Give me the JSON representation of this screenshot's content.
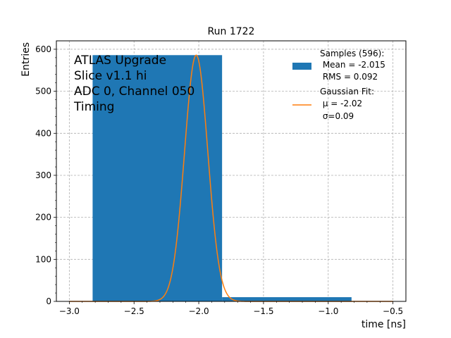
{
  "chart_data": {
    "type": "bar",
    "title": "Run 1722",
    "xlabel": "time [ns]",
    "ylabel": "Entries",
    "xlim": [
      -3.1,
      -0.4
    ],
    "ylim": [
      0,
      620
    ],
    "xticks": [
      -3.0,
      -2.5,
      -2.0,
      -1.5,
      -1.0,
      -0.5
    ],
    "xtick_labels": [
      "−3.0",
      "−2.5",
      "−2.0",
      "−1.5",
      "−1.0",
      "−0.5"
    ],
    "yticks": [
      0,
      100,
      200,
      300,
      400,
      500,
      600
    ],
    "ytick_labels": [
      "0",
      "100",
      "200",
      "300",
      "400",
      "500",
      "600"
    ],
    "grid": true,
    "histogram": {
      "name": "Samples (596):",
      "color": "#1f77b4",
      "bins": [
        {
          "x0": -2.82,
          "x1": -1.82,
          "count": 586
        },
        {
          "x0": -1.82,
          "x1": -0.82,
          "count": 10
        }
      ]
    },
    "fit": {
      "type": "gaussian",
      "color": "#ff7f0e",
      "mu": -2.02,
      "sigma": 0.09,
      "amplitude": 586,
      "x_range": [
        -3.0,
        -0.5
      ]
    },
    "legend": {
      "position": "top-right",
      "entries": [
        {
          "lines": [
            "Samples (596):",
            " Mean = -2.015",
            " RMS = 0.092"
          ]
        },
        {
          "lines": [
            "Gaussian Fit:",
            " μ = -2.02",
            " σ=0.09"
          ]
        }
      ]
    },
    "annotations": [
      "ATLAS Upgrade",
      "Slice v1.1 hi",
      "ADC 0, Channel 050",
      "Timing"
    ]
  }
}
